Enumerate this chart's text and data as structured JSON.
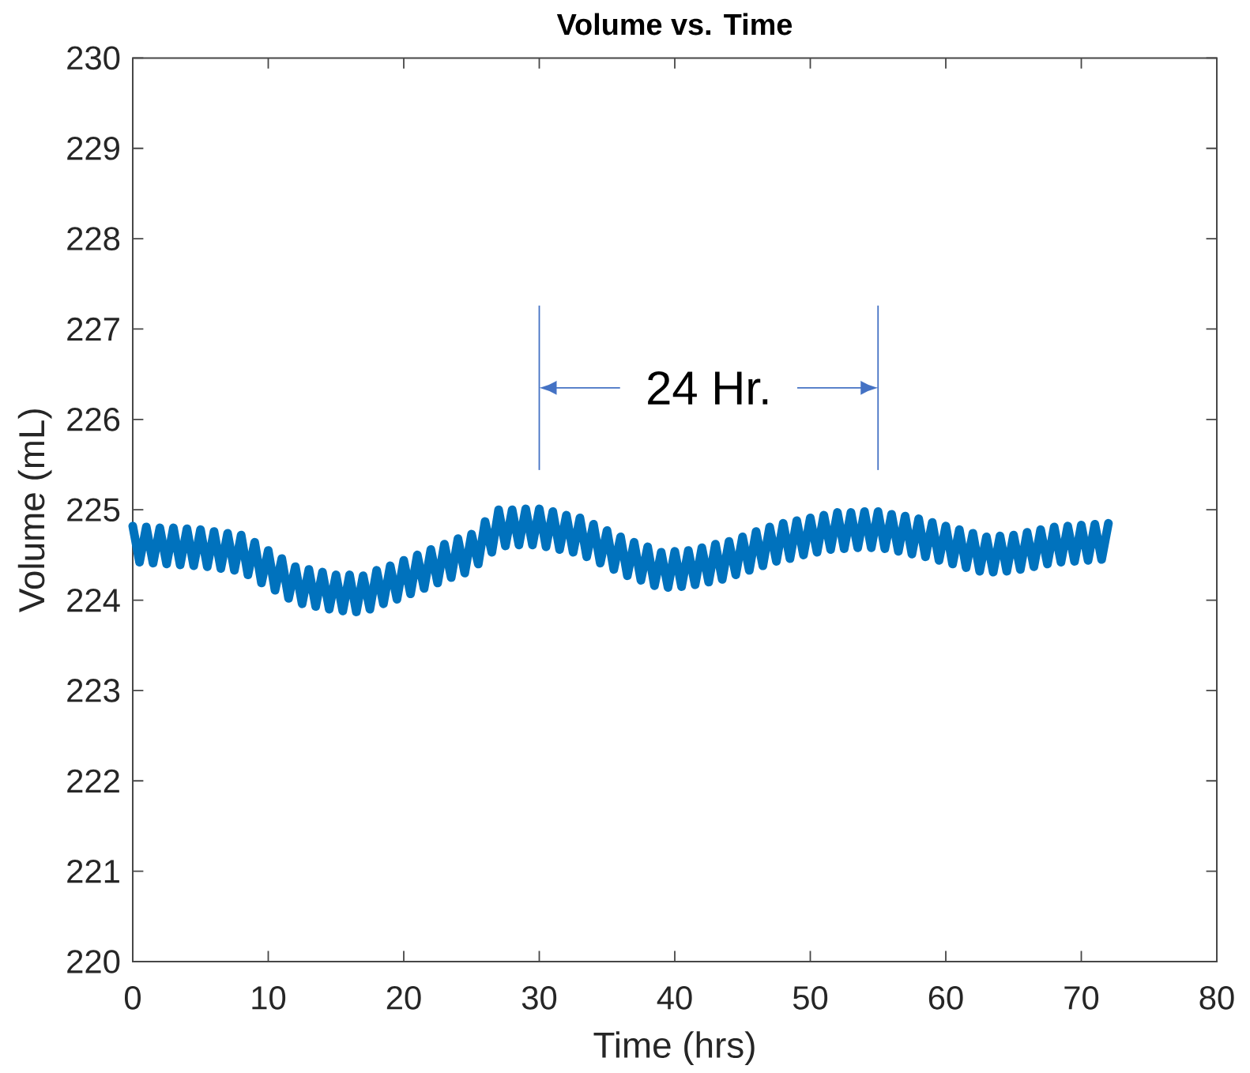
{
  "chart_data": {
    "type": "line",
    "title": "Volume vs. Time",
    "xlabel": "Time (hrs)",
    "ylabel": "Volume (mL)",
    "x": [
      0,
      0.5,
      1,
      1.5,
      2,
      2.5,
      3,
      3.5,
      4,
      4.5,
      5,
      5.5,
      6,
      6.5,
      7,
      7.5,
      8,
      8.5,
      9,
      9.5,
      10,
      10.5,
      11,
      11.5,
      12,
      12.5,
      13,
      13.5,
      14,
      14.5,
      15,
      15.5,
      16,
      16.5,
      17,
      17.5,
      18,
      18.5,
      19,
      19.5,
      20,
      20.5,
      21,
      21.5,
      22,
      22.5,
      23,
      23.5,
      24,
      24.5,
      25,
      25.5,
      26,
      26.5,
      27,
      27.5,
      28,
      28.5,
      29,
      29.5,
      30,
      30.5,
      31,
      31.5,
      32,
      32.5,
      33,
      33.5,
      34,
      34.5,
      35,
      35.5,
      36,
      36.5,
      37,
      37.5,
      38,
      38.5,
      39,
      39.5,
      40,
      40.5,
      41,
      41.5,
      42,
      42.5,
      43,
      43.5,
      44,
      44.5,
      45,
      45.5,
      46,
      46.5,
      47,
      47.5,
      48,
      48.5,
      49,
      49.5,
      50,
      50.5,
      51,
      51.5,
      52,
      52.5,
      53,
      53.5,
      54,
      54.5,
      55,
      55.5,
      56,
      56.5,
      57,
      57.5,
      58,
      58.5,
      59,
      59.5,
      60,
      60.5,
      61,
      61.5,
      62,
      62.5,
      63,
      63.5,
      64,
      64.5,
      65,
      65.5,
      66,
      66.5,
      67,
      67.5,
      68,
      68.5,
      69,
      69.5,
      70,
      70.5,
      71,
      71.5,
      72
    ],
    "series": [
      {
        "color": "#0072bd",
        "values": [
          224.82,
          224.42,
          224.81,
          224.41,
          224.8,
          224.4,
          224.8,
          224.39,
          224.79,
          224.38,
          224.78,
          224.37,
          224.76,
          224.35,
          224.74,
          224.33,
          224.72,
          224.28,
          224.64,
          224.19,
          224.55,
          224.11,
          224.46,
          224.02,
          224.37,
          223.96,
          224.34,
          223.93,
          224.31,
          223.9,
          224.28,
          223.88,
          224.28,
          223.87,
          224.27,
          223.9,
          224.33,
          223.96,
          224.38,
          224.01,
          224.44,
          224.07,
          224.5,
          224.13,
          224.56,
          224.19,
          224.62,
          224.25,
          224.68,
          224.3,
          224.73,
          224.4,
          224.87,
          224.53,
          225.0,
          224.6,
          225.0,
          224.61,
          225.01,
          224.61,
          225.01,
          224.59,
          224.98,
          224.56,
          224.94,
          224.53,
          224.91,
          224.48,
          224.84,
          224.41,
          224.77,
          224.34,
          224.7,
          224.27,
          224.64,
          224.22,
          224.59,
          224.16,
          224.53,
          224.14,
          224.54,
          224.15,
          224.55,
          224.17,
          224.58,
          224.2,
          224.62,
          224.23,
          224.65,
          224.28,
          224.7,
          224.33,
          224.76,
          224.38,
          224.81,
          224.43,
          224.85,
          224.46,
          224.88,
          224.5,
          224.91,
          224.53,
          224.94,
          224.56,
          224.97,
          224.57,
          224.97,
          224.58,
          224.98,
          224.58,
          224.98,
          224.57,
          224.95,
          224.54,
          224.93,
          224.51,
          224.9,
          224.48,
          224.86,
          224.44,
          224.82,
          224.4,
          224.78,
          224.36,
          224.74,
          224.32,
          224.7,
          224.31,
          224.71,
          224.32,
          224.72,
          224.34,
          224.75,
          224.37,
          224.78,
          224.4,
          224.81,
          224.42,
          224.82,
          224.43,
          224.83,
          224.44,
          224.84,
          224.45,
          224.85
        ]
      }
    ],
    "xlim": [
      0,
      80
    ],
    "ylim": [
      220,
      230
    ],
    "xticks": [
      0,
      10,
      20,
      30,
      40,
      50,
      60,
      70,
      80
    ],
    "yticks": [
      220,
      221,
      222,
      223,
      224,
      225,
      226,
      227,
      228,
      229,
      230
    ],
    "ref_lines": [
      {
        "axis": "x",
        "value": 30,
        "color": "#4472c4"
      },
      {
        "axis": "x",
        "value": 55,
        "color": "#4472c4"
      }
    ],
    "annotations": [
      {
        "text": "24 Hr.",
        "x": 30,
        "y": 226.35
      }
    ],
    "line_style": "solid"
  }
}
